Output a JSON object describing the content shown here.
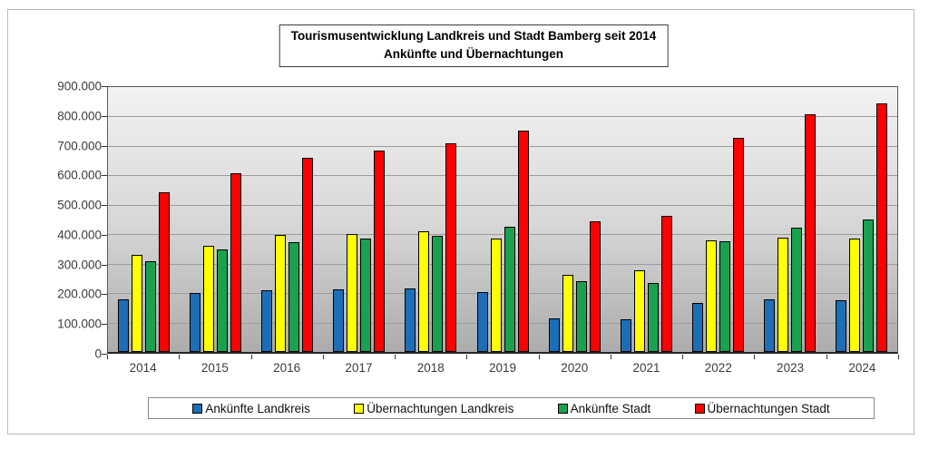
{
  "title": {
    "line1": "Tourismusentwicklung Landkreis und Stadt Bamberg seit 2014",
    "line2": "Ankünfte und Übernachtungen"
  },
  "chart_data": {
    "type": "bar",
    "title": "Tourismusentwicklung Landkreis und Stadt Bamberg seit 2014",
    "subtitle": "Ankünfte und Übernachtungen",
    "categories": [
      "2014",
      "2015",
      "2016",
      "2017",
      "2018",
      "2019",
      "2020",
      "2021",
      "2022",
      "2023",
      "2024"
    ],
    "series": [
      {
        "name": "Ankünfte Landkreis",
        "color": "#1c6eb7",
        "values": [
          178000,
          199000,
          211000,
          212000,
          216000,
          202000,
          115000,
          112000,
          168000,
          179000,
          176000
        ]
      },
      {
        "name": "Übernachtungen Landkreis",
        "color": "#ffff00",
        "values": [
          330000,
          360000,
          397000,
          402000,
          409000,
          386000,
          262000,
          277000,
          378000,
          389000,
          385000
        ]
      },
      {
        "name": "Ankünfte Stadt",
        "color": "#1aa14f",
        "values": [
          307000,
          348000,
          372000,
          386000,
          394000,
          426000,
          240000,
          233000,
          376000,
          421000,
          450000
        ]
      },
      {
        "name": "Übernachtungen Stadt",
        "color": "#ff0000",
        "values": [
          543000,
          607000,
          660000,
          685000,
          708000,
          753000,
          443000,
          461000,
          727000,
          808000,
          845000
        ]
      }
    ],
    "ylim": [
      0,
      900000
    ],
    "ytick_step": 100000,
    "ytick_labels": [
      "900.000",
      "800.000",
      "700.000",
      "600.000",
      "500.000",
      "400.000",
      "300.000",
      "200.000",
      "100.000",
      "0"
    ],
    "grid": true,
    "legend_position": "bottom",
    "plot_background": [
      "#f2f2f2",
      "#acacac"
    ]
  }
}
